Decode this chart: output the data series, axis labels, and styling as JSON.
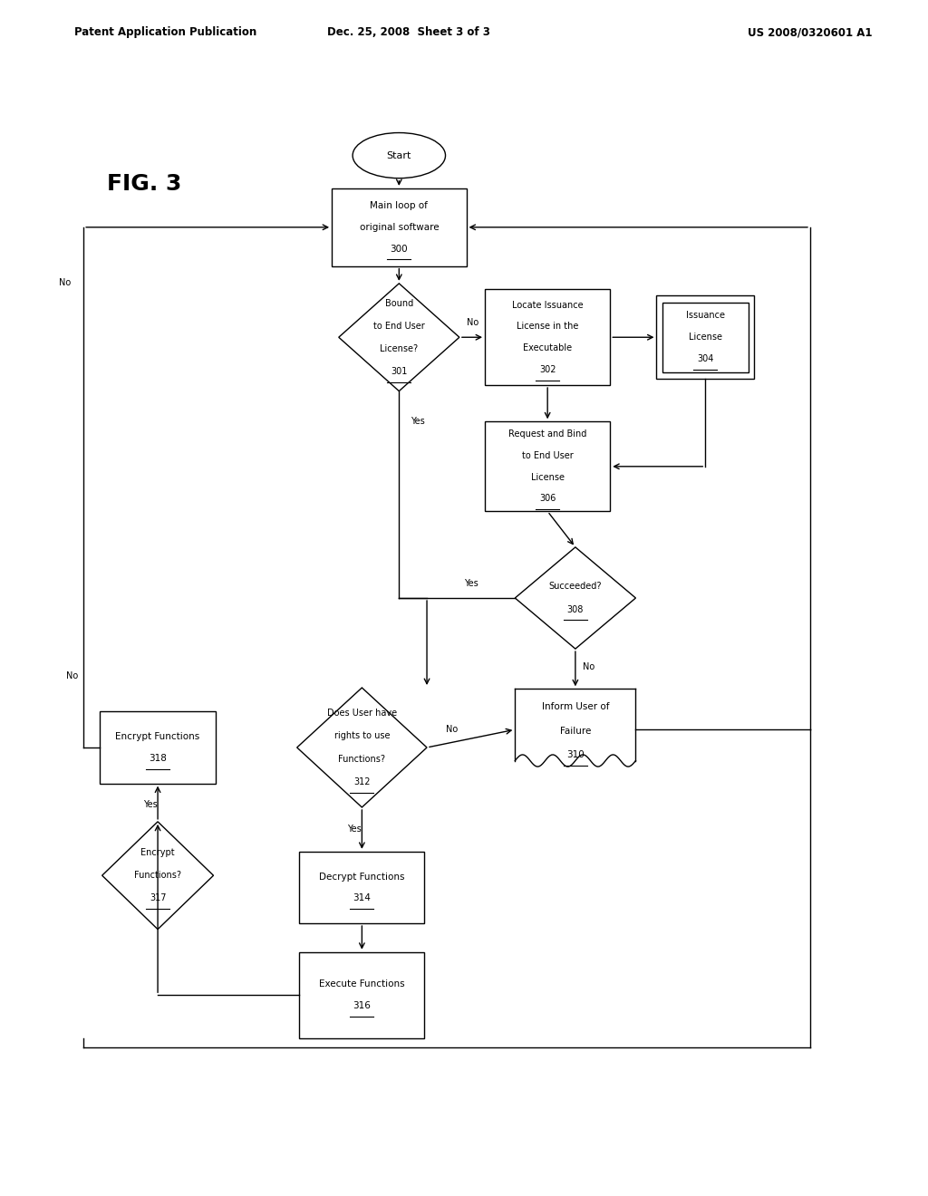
{
  "header_left": "Patent Application Publication",
  "header_center": "Dec. 25, 2008  Sheet 3 of 3",
  "header_right": "US 2008/0320601 A1",
  "fig_label": "FIG. 3",
  "bg_color": "#ffffff"
}
